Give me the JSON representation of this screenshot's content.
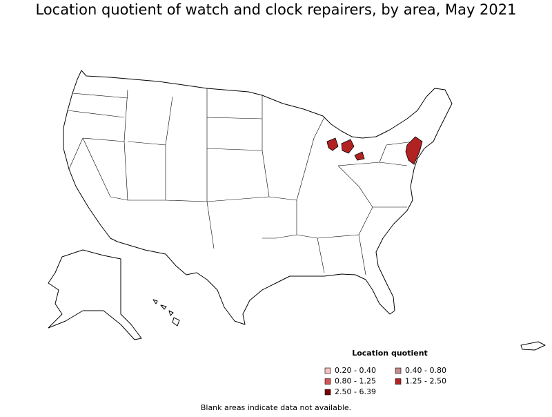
{
  "title": "Location quotient of watch and clock repairers, by area, May 2021",
  "legend": {
    "title": "Location quotient",
    "items": [
      {
        "label": "0.20 - 0.40",
        "color": "#f4c2c2"
      },
      {
        "label": "0.40 - 0.80",
        "color": "#c48c8c"
      },
      {
        "label": "0.80 - 1.25",
        "color": "#d25555"
      },
      {
        "label": "1.25 - 2.50",
        "color": "#b22222"
      },
      {
        "label": "2.50 - 6.39",
        "color": "#7a0000"
      }
    ]
  },
  "footnote": "Blank areas indicate data not available."
}
